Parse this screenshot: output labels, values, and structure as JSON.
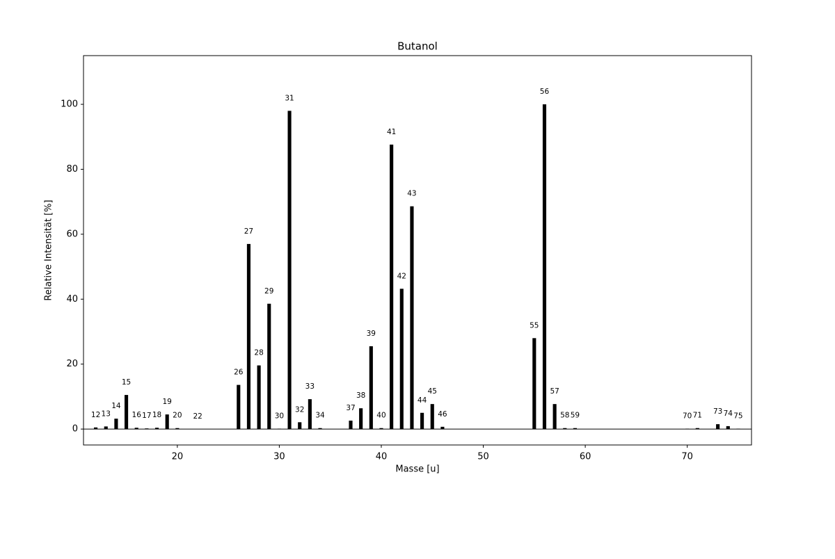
{
  "chart_data": {
    "type": "bar",
    "title": "Butanol",
    "xlabel": "Masse [u]",
    "ylabel": "Relative Intensität [%]",
    "x": [
      12,
      13,
      14,
      15,
      16,
      17,
      18,
      19,
      20,
      22,
      26,
      27,
      28,
      29,
      30,
      31,
      32,
      33,
      34,
      37,
      38,
      39,
      40,
      41,
      42,
      43,
      44,
      45,
      46,
      55,
      56,
      57,
      58,
      59,
      70,
      71,
      73,
      74,
      75
    ],
    "values": [
      0.5,
      0.8,
      3.2,
      10.5,
      0.4,
      0.2,
      0.4,
      4.5,
      0.3,
      0,
      13.6,
      57,
      19.6,
      38.6,
      0.1,
      98,
      2.1,
      9.2,
      0.3,
      2.6,
      6.4,
      25.5,
      0.3,
      87.6,
      43.2,
      68.6,
      5,
      7.7,
      0.7,
      28,
      100,
      7.7,
      0.3,
      0.3,
      0.1,
      0.3,
      1.5,
      0.9,
      0.1
    ],
    "color": "#000000",
    "xlim": [
      10.8,
      76.3
    ],
    "xticks": [
      20,
      30,
      40,
      50,
      60,
      70
    ],
    "ylim": [
      -4.9,
      115
    ],
    "yticks": [
      0,
      20,
      40,
      60,
      80,
      100
    ]
  }
}
